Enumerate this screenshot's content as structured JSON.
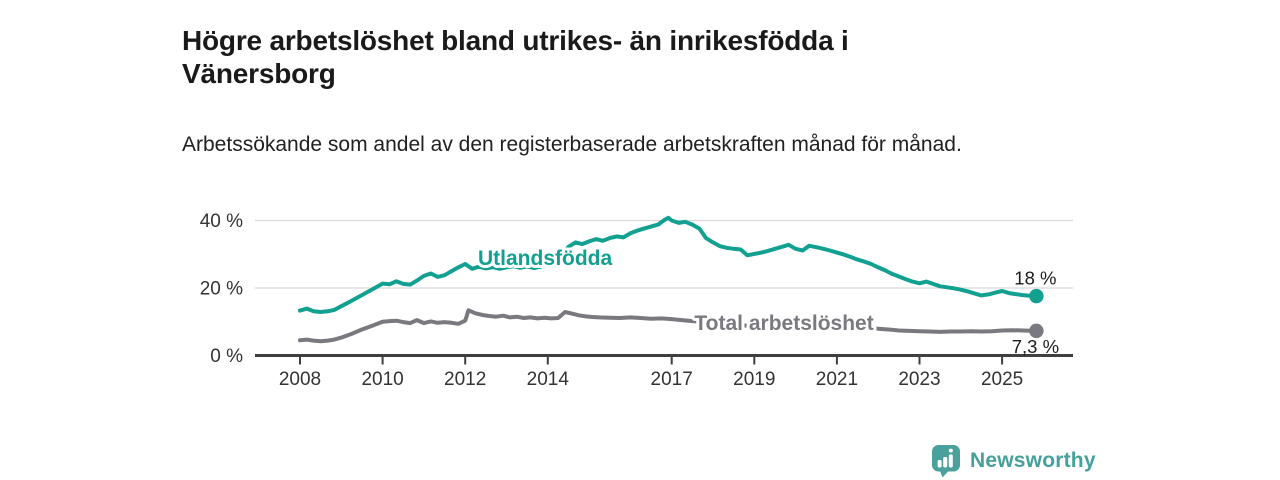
{
  "title": "Högre arbetslöshet bland utrikes- än inrikesfödda i Vänersborg",
  "subtitle": "Arbetssökande som andel av den registerbaserade arbetskraften månad för månad.",
  "branding": {
    "logo_text": "Newsworthy",
    "logo_icon": "speech-bubble-bar-chart-icon"
  },
  "colors": {
    "teal": "#12a091",
    "gray": "#7a7980",
    "grid": "#d9d9d9",
    "axis": "#3f3f3f",
    "tick_text": "#333333",
    "value_text": "#1c1c1c",
    "title_text": "#1a1a1a",
    "brand": "#46a09b"
  },
  "chart_data": {
    "type": "line",
    "x_unit": "year (monthly series)",
    "y_unit": "percent of registered labour force",
    "xlim": [
      2006.9,
      2026.7
    ],
    "ylim": [
      0,
      44
    ],
    "grid": "horizontal",
    "x_ticks": [
      {
        "value": 2008,
        "label": "2008"
      },
      {
        "value": 2010,
        "label": "2010"
      },
      {
        "value": 2012,
        "label": "2012"
      },
      {
        "value": 2014,
        "label": "2014"
      },
      {
        "value": 2017,
        "label": "2017"
      },
      {
        "value": 2019,
        "label": "2019"
      },
      {
        "value": 2021,
        "label": "2021"
      },
      {
        "value": 2023,
        "label": "2023"
      },
      {
        "value": 2025,
        "label": "2025"
      }
    ],
    "y_ticks": [
      {
        "value": 0,
        "label": "0 %"
      },
      {
        "value": 20,
        "label": "20 %"
      },
      {
        "value": 40,
        "label": "40 %"
      }
    ],
    "series": [
      {
        "name": "Utlandsfödda",
        "color": "#12a091",
        "end_label": "18 %",
        "end_label_position": "above",
        "label_at": {
          "x": 2012.31,
          "y": 26.8
        },
        "points": [
          [
            2008.0,
            13.3
          ],
          [
            2008.17,
            13.9
          ],
          [
            2008.33,
            13.1
          ],
          [
            2008.5,
            12.9
          ],
          [
            2008.67,
            13.1
          ],
          [
            2008.83,
            13.5
          ],
          [
            2009.0,
            14.6
          ],
          [
            2009.25,
            16.2
          ],
          [
            2009.5,
            17.9
          ],
          [
            2009.75,
            19.6
          ],
          [
            2010.0,
            21.3
          ],
          [
            2010.17,
            21.1
          ],
          [
            2010.33,
            22.0
          ],
          [
            2010.5,
            21.2
          ],
          [
            2010.67,
            21.0
          ],
          [
            2010.83,
            22.2
          ],
          [
            2011.0,
            23.6
          ],
          [
            2011.17,
            24.3
          ],
          [
            2011.33,
            23.3
          ],
          [
            2011.5,
            23.8
          ],
          [
            2011.67,
            25.0
          ],
          [
            2011.83,
            26.1
          ],
          [
            2012.0,
            27.1
          ],
          [
            2012.17,
            25.7
          ],
          [
            2012.33,
            26.3
          ],
          [
            2012.5,
            25.8
          ],
          [
            2012.67,
            26.2
          ],
          [
            2012.83,
            25.7
          ],
          [
            2013.0,
            26.1
          ],
          [
            2013.17,
            26.5
          ],
          [
            2013.33,
            26.0
          ],
          [
            2013.5,
            26.4
          ],
          [
            2013.67,
            25.9
          ],
          [
            2013.83,
            26.3
          ],
          [
            2014.0,
            27.3
          ],
          [
            2014.17,
            29.0
          ],
          [
            2014.25,
            30.4
          ],
          [
            2014.33,
            29.6
          ],
          [
            2014.5,
            32.2
          ],
          [
            2014.67,
            33.5
          ],
          [
            2014.83,
            33.0
          ],
          [
            2015.0,
            33.8
          ],
          [
            2015.17,
            34.5
          ],
          [
            2015.33,
            34.0
          ],
          [
            2015.5,
            34.8
          ],
          [
            2015.67,
            35.3
          ],
          [
            2015.83,
            35.0
          ],
          [
            2016.0,
            36.2
          ],
          [
            2016.17,
            37.0
          ],
          [
            2016.33,
            37.6
          ],
          [
            2016.5,
            38.2
          ],
          [
            2016.67,
            38.8
          ],
          [
            2016.83,
            40.2
          ],
          [
            2016.92,
            40.8
          ],
          [
            2017.0,
            40.0
          ],
          [
            2017.17,
            39.3
          ],
          [
            2017.33,
            39.6
          ],
          [
            2017.5,
            38.8
          ],
          [
            2017.67,
            37.6
          ],
          [
            2017.83,
            34.8
          ],
          [
            2018.0,
            33.5
          ],
          [
            2018.17,
            32.4
          ],
          [
            2018.33,
            31.9
          ],
          [
            2018.5,
            31.6
          ],
          [
            2018.67,
            31.4
          ],
          [
            2018.83,
            29.7
          ],
          [
            2019.0,
            30.1
          ],
          [
            2019.17,
            30.5
          ],
          [
            2019.33,
            31.0
          ],
          [
            2019.5,
            31.6
          ],
          [
            2019.67,
            32.2
          ],
          [
            2019.83,
            32.8
          ],
          [
            2020.0,
            31.6
          ],
          [
            2020.17,
            31.1
          ],
          [
            2020.33,
            32.5
          ],
          [
            2020.5,
            32.1
          ],
          [
            2020.67,
            31.6
          ],
          [
            2020.83,
            31.1
          ],
          [
            2021.0,
            30.5
          ],
          [
            2021.17,
            29.9
          ],
          [
            2021.33,
            29.2
          ],
          [
            2021.5,
            28.4
          ],
          [
            2021.67,
            27.8
          ],
          [
            2021.83,
            27.1
          ],
          [
            2022.0,
            26.1
          ],
          [
            2022.17,
            25.2
          ],
          [
            2022.33,
            24.2
          ],
          [
            2022.5,
            23.4
          ],
          [
            2022.67,
            22.6
          ],
          [
            2022.83,
            21.9
          ],
          [
            2023.0,
            21.4
          ],
          [
            2023.17,
            21.9
          ],
          [
            2023.33,
            21.2
          ],
          [
            2023.5,
            20.5
          ],
          [
            2023.67,
            20.2
          ],
          [
            2023.83,
            19.9
          ],
          [
            2024.0,
            19.5
          ],
          [
            2024.17,
            19.0
          ],
          [
            2024.33,
            18.4
          ],
          [
            2024.5,
            17.8
          ],
          [
            2024.67,
            18.1
          ],
          [
            2024.83,
            18.6
          ],
          [
            2025.0,
            19.1
          ],
          [
            2025.17,
            18.5
          ],
          [
            2025.33,
            18.2
          ],
          [
            2025.5,
            17.9
          ],
          [
            2025.67,
            17.7
          ],
          [
            2025.83,
            17.6
          ]
        ]
      },
      {
        "name": "Total arbetslöshet",
        "color": "#7a7980",
        "end_label": "7,3 %",
        "end_label_position": "below",
        "label_at": {
          "x": 2017.55,
          "y": 7.55
        },
        "points": [
          [
            2008.0,
            4.5
          ],
          [
            2008.17,
            4.7
          ],
          [
            2008.33,
            4.4
          ],
          [
            2008.5,
            4.2
          ],
          [
            2008.67,
            4.4
          ],
          [
            2008.83,
            4.7
          ],
          [
            2009.0,
            5.3
          ],
          [
            2009.25,
            6.4
          ],
          [
            2009.5,
            7.7
          ],
          [
            2009.75,
            8.8
          ],
          [
            2010.0,
            10.0
          ],
          [
            2010.17,
            10.2
          ],
          [
            2010.33,
            10.3
          ],
          [
            2010.5,
            9.9
          ],
          [
            2010.67,
            9.6
          ],
          [
            2010.83,
            10.5
          ],
          [
            2011.0,
            9.6
          ],
          [
            2011.17,
            10.1
          ],
          [
            2011.33,
            9.7
          ],
          [
            2011.5,
            9.9
          ],
          [
            2011.67,
            9.7
          ],
          [
            2011.83,
            9.4
          ],
          [
            2012.0,
            10.3
          ],
          [
            2012.08,
            13.4
          ],
          [
            2012.25,
            12.5
          ],
          [
            2012.42,
            12.0
          ],
          [
            2012.58,
            11.7
          ],
          [
            2012.75,
            11.5
          ],
          [
            2012.92,
            11.8
          ],
          [
            2013.08,
            11.3
          ],
          [
            2013.25,
            11.5
          ],
          [
            2013.42,
            11.1
          ],
          [
            2013.58,
            11.3
          ],
          [
            2013.75,
            11.0
          ],
          [
            2013.92,
            11.2
          ],
          [
            2014.08,
            11.0
          ],
          [
            2014.25,
            11.1
          ],
          [
            2014.42,
            12.9
          ],
          [
            2014.58,
            12.4
          ],
          [
            2014.75,
            11.9
          ],
          [
            2014.92,
            11.6
          ],
          [
            2015.08,
            11.4
          ],
          [
            2015.25,
            11.3
          ],
          [
            2015.5,
            11.2
          ],
          [
            2015.75,
            11.1
          ],
          [
            2016.0,
            11.3
          ],
          [
            2016.25,
            11.1
          ],
          [
            2016.5,
            10.9
          ],
          [
            2016.75,
            11.0
          ],
          [
            2017.0,
            10.8
          ],
          [
            2017.25,
            10.5
          ],
          [
            2017.5,
            10.2
          ],
          [
            2017.75,
            10.0
          ],
          [
            2018.0,
            9.7
          ],
          [
            2018.25,
            9.4
          ],
          [
            2018.5,
            9.1
          ],
          [
            2018.75,
            8.9
          ],
          [
            2019.0,
            8.7
          ],
          [
            2019.25,
            8.6
          ],
          [
            2019.5,
            8.5
          ],
          [
            2019.75,
            8.6
          ],
          [
            2020.0,
            8.5
          ],
          [
            2020.25,
            9.3
          ],
          [
            2020.5,
            9.7
          ],
          [
            2020.75,
            9.5
          ],
          [
            2021.0,
            9.1
          ],
          [
            2021.25,
            8.7
          ],
          [
            2021.5,
            8.4
          ],
          [
            2021.75,
            8.2
          ],
          [
            2022.0,
            7.9
          ],
          [
            2022.25,
            7.7
          ],
          [
            2022.5,
            7.4
          ],
          [
            2022.75,
            7.3
          ],
          [
            2023.0,
            7.2
          ],
          [
            2023.25,
            7.1
          ],
          [
            2023.5,
            7.0
          ],
          [
            2023.75,
            7.1
          ],
          [
            2024.0,
            7.1
          ],
          [
            2024.25,
            7.2
          ],
          [
            2024.5,
            7.1
          ],
          [
            2024.75,
            7.2
          ],
          [
            2025.0,
            7.4
          ],
          [
            2025.25,
            7.5
          ],
          [
            2025.5,
            7.4
          ],
          [
            2025.83,
            7.3
          ]
        ]
      }
    ]
  }
}
